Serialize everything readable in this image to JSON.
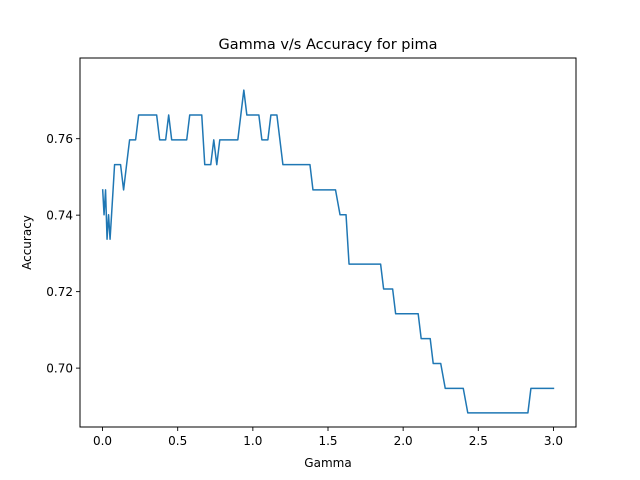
{
  "chart_data": {
    "type": "line",
    "title": "Gamma v/s Accuracy for pima",
    "xlabel": "Gamma",
    "ylabel": "Accuracy",
    "xlim": [
      -0.15,
      3.15
    ],
    "ylim": [
      0.6846,
      0.7811
    ],
    "xticks": [
      0.0,
      0.5,
      1.0,
      1.5,
      2.0,
      2.5,
      3.0
    ],
    "xtick_labels": [
      "0.0",
      "0.5",
      "1.0",
      "1.5",
      "2.0",
      "2.5",
      "3.0"
    ],
    "yticks": [
      0.7,
      0.72,
      0.74,
      0.76
    ],
    "ytick_labels": [
      "0.70",
      "0.72",
      "0.74",
      "0.76"
    ],
    "grid": false,
    "line_color": "#1f77b4",
    "series": [
      {
        "x": [
          0.001,
          0.01,
          0.02,
          0.03,
          0.04,
          0.05,
          0.06,
          0.07,
          0.08,
          0.1,
          0.12,
          0.14,
          0.16,
          0.18,
          0.2,
          0.22,
          0.24,
          0.26,
          0.28,
          0.3,
          0.32,
          0.34,
          0.36,
          0.38,
          0.4,
          0.42,
          0.44,
          0.46,
          0.48,
          0.5,
          0.52,
          0.54,
          0.56,
          0.58,
          0.6,
          0.62,
          0.64,
          0.66,
          0.68,
          0.7,
          0.72,
          0.74,
          0.76,
          0.78,
          0.8,
          0.82,
          0.84,
          0.86,
          0.88,
          0.9,
          0.92,
          0.94,
          0.96,
          0.98,
          1.0,
          1.02,
          1.04,
          1.06,
          1.08,
          1.1,
          1.12,
          1.14,
          1.16,
          1.18,
          1.2,
          1.22,
          1.24,
          1.26,
          1.28,
          1.3,
          1.32,
          1.34,
          1.36,
          1.38,
          1.4,
          1.45,
          1.5,
          1.55,
          1.58,
          1.62,
          1.64,
          1.66,
          1.7,
          1.75,
          1.8,
          1.85,
          1.87,
          1.9,
          1.93,
          1.95,
          2.0,
          2.05,
          2.1,
          2.12,
          2.15,
          2.18,
          2.2,
          2.25,
          2.28,
          2.3,
          2.35,
          2.4,
          2.43,
          2.45,
          2.5,
          2.55,
          2.6,
          2.65,
          2.7,
          2.75,
          2.8,
          2.83,
          2.85,
          2.9,
          2.95,
          3.0
        ],
        "y": [
          0.7466,
          0.7401,
          0.7466,
          0.7337,
          0.7401,
          0.7337,
          0.7401,
          0.7466,
          0.7532,
          0.7532,
          0.7532,
          0.7466,
          0.7532,
          0.7597,
          0.7597,
          0.7597,
          0.7662,
          0.7662,
          0.7662,
          0.7662,
          0.7662,
          0.7662,
          0.7662,
          0.7597,
          0.7597,
          0.7597,
          0.7662,
          0.7597,
          0.7597,
          0.7597,
          0.7597,
          0.7597,
          0.7597,
          0.7662,
          0.7662,
          0.7662,
          0.7662,
          0.7662,
          0.7532,
          0.7532,
          0.7532,
          0.7597,
          0.7532,
          0.7597,
          0.7597,
          0.7597,
          0.7597,
          0.7597,
          0.7597,
          0.7597,
          0.7662,
          0.7727,
          0.7662,
          0.7662,
          0.7662,
          0.7662,
          0.7662,
          0.7597,
          0.7597,
          0.7597,
          0.7662,
          0.7662,
          0.7662,
          0.7597,
          0.7532,
          0.7532,
          0.7532,
          0.7532,
          0.7532,
          0.7532,
          0.7532,
          0.7532,
          0.7532,
          0.7532,
          0.7466,
          0.7466,
          0.7466,
          0.7466,
          0.7401,
          0.7401,
          0.7272,
          0.7272,
          0.7272,
          0.7272,
          0.7272,
          0.7272,
          0.7207,
          0.7207,
          0.7207,
          0.7142,
          0.7142,
          0.7142,
          0.7142,
          0.7077,
          0.7077,
          0.7077,
          0.7012,
          0.7012,
          0.6947,
          0.6947,
          0.6947,
          0.6947,
          0.6883,
          0.6883,
          0.6883,
          0.6883,
          0.6883,
          0.6883,
          0.6883,
          0.6883,
          0.6883,
          0.6883,
          0.6947,
          0.6947,
          0.6947,
          0.6947
        ]
      }
    ]
  }
}
